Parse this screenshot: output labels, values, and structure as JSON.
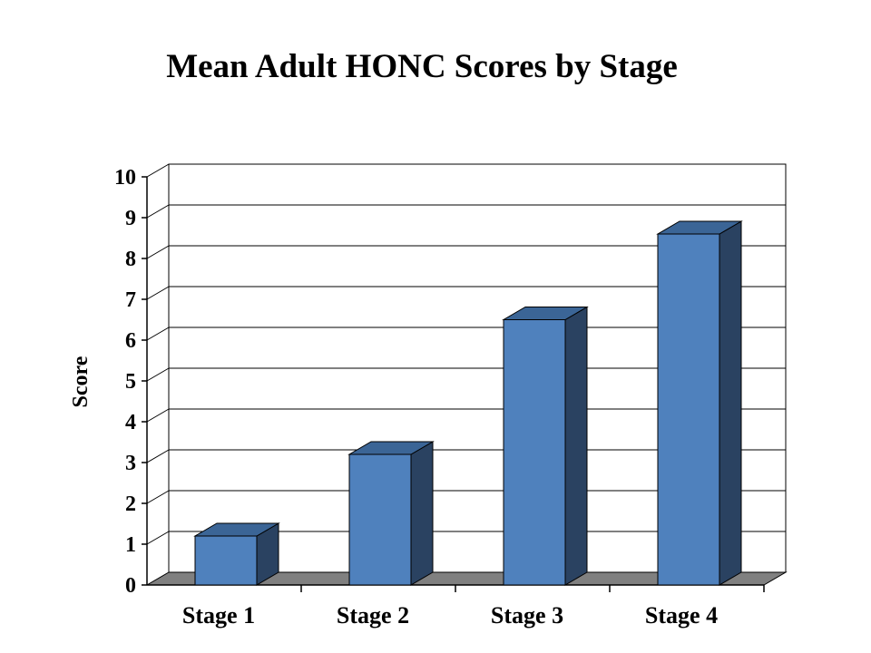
{
  "chart_data": {
    "type": "bar",
    "title": "Mean Adult HONC Scores by Stage",
    "xlabel": "",
    "ylabel": "Score",
    "categories": [
      "Stage 1",
      "Stage 2",
      "Stage 3",
      "Stage 4"
    ],
    "series": [
      {
        "values": [
          1.2,
          3.2,
          6.5,
          8.6
        ]
      }
    ],
    "ylim": [
      0,
      10
    ],
    "yticks": [
      "0",
      "1",
      "2",
      "3",
      "4",
      "5",
      "6",
      "7",
      "8",
      "9",
      "10"
    ],
    "grid": true,
    "legend": "none",
    "style": "3d",
    "colors": {
      "bar_front": "#4f81bd",
      "bar_top": "#3b6596",
      "bar_side": "#2a4261",
      "floor": "#808080",
      "gridline": "#000000"
    }
  }
}
